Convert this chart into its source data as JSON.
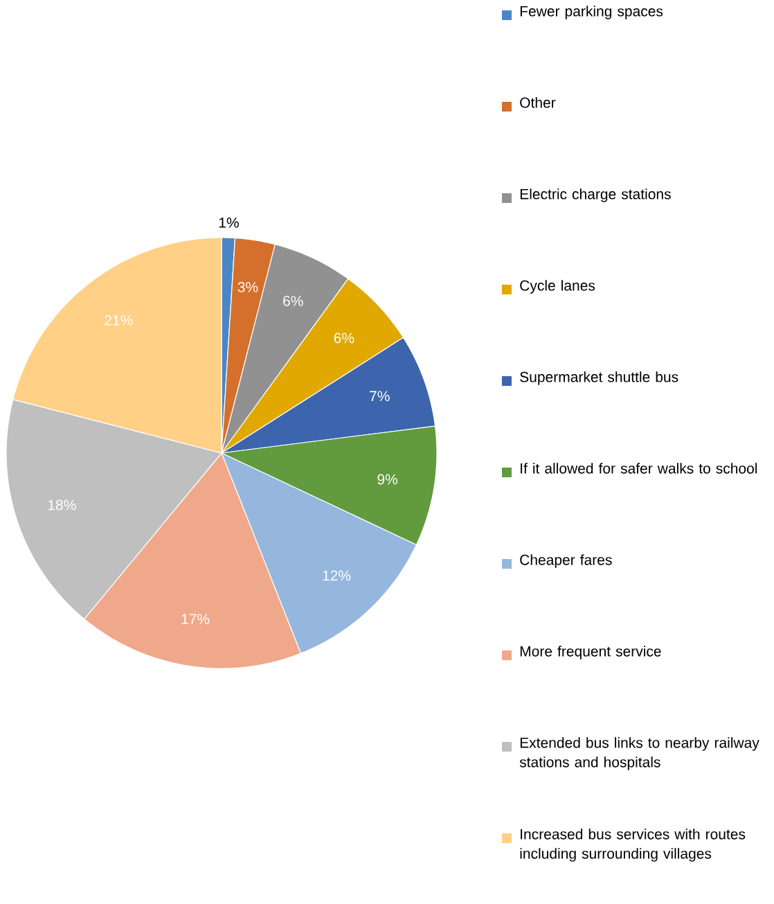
{
  "chart_data": {
    "type": "pie",
    "categories": [
      "Fewer parking spaces",
      "Other",
      "Electric charge stations",
      "Cycle lanes",
      "Supermarket shuttle bus",
      "If it allowed for safer walks to school",
      "Cheaper fares",
      "More frequent service",
      "Extended bus links to nearby railway stations and hospitals",
      "Increased bus services with routes including surrounding villages"
    ],
    "values": [
      1,
      3,
      6,
      6,
      7,
      9,
      12,
      17,
      18,
      21
    ],
    "colors": [
      "#4a86c5",
      "#d4702b",
      "#919191",
      "#e0a800",
      "#3d65ad",
      "#629a3e",
      "#95b7de",
      "#f0a88a",
      "#bfbfbf",
      "#ffd085"
    ],
    "value_labels": [
      "1%",
      "3%",
      "6%",
      "6%",
      "7%",
      "9%",
      "12%",
      "17%",
      "18%",
      "21%"
    ],
    "legend": "right"
  }
}
